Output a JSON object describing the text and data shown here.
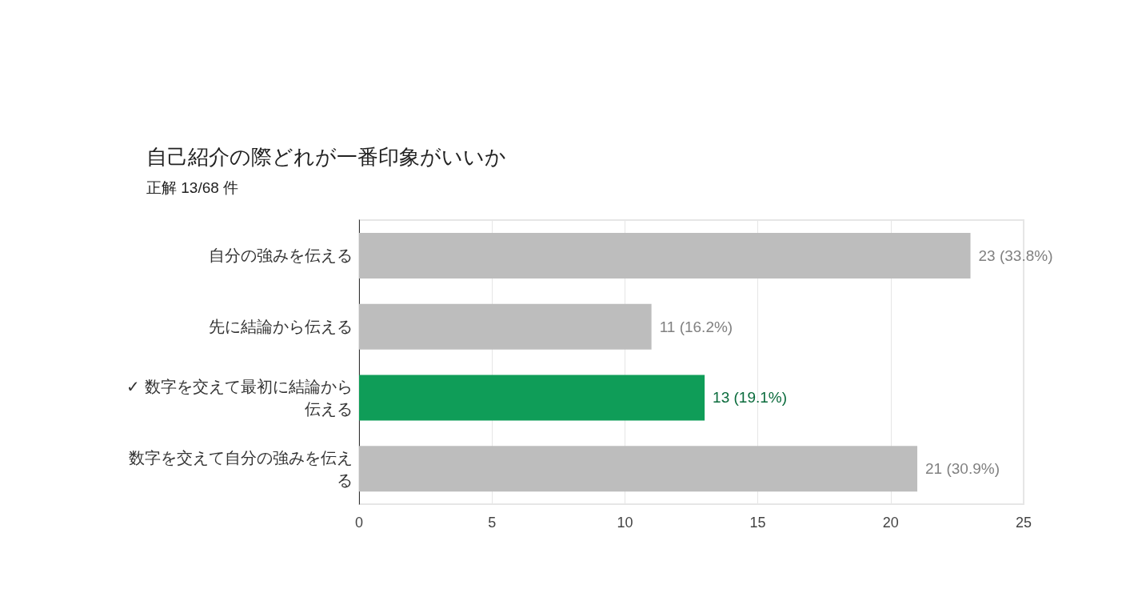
{
  "chart_data": {
    "type": "bar",
    "orientation": "horizontal",
    "title": "自己紹介の際どれが一番印象がいいか",
    "subtitle": "正解 13/68 件",
    "categories": [
      "自分の強みを伝える",
      "先に結論から伝える",
      "✓ 数字を交えて最初に結論から伝える",
      "数字を交えて自分の強みを伝える"
    ],
    "values": [
      23,
      11,
      13,
      21
    ],
    "colors": [
      "#bdbdbd",
      "#bdbdbd",
      "#0f9d58",
      "#bdbdbd"
    ],
    "value_labels": [
      "23 (33.8%)",
      "11 (16.2%)",
      "13 (19.1%)",
      "21 (30.9%)"
    ],
    "xlim": [
      0,
      25
    ],
    "xticks": [
      0,
      5,
      10,
      15,
      20,
      25
    ],
    "grid": "x"
  }
}
